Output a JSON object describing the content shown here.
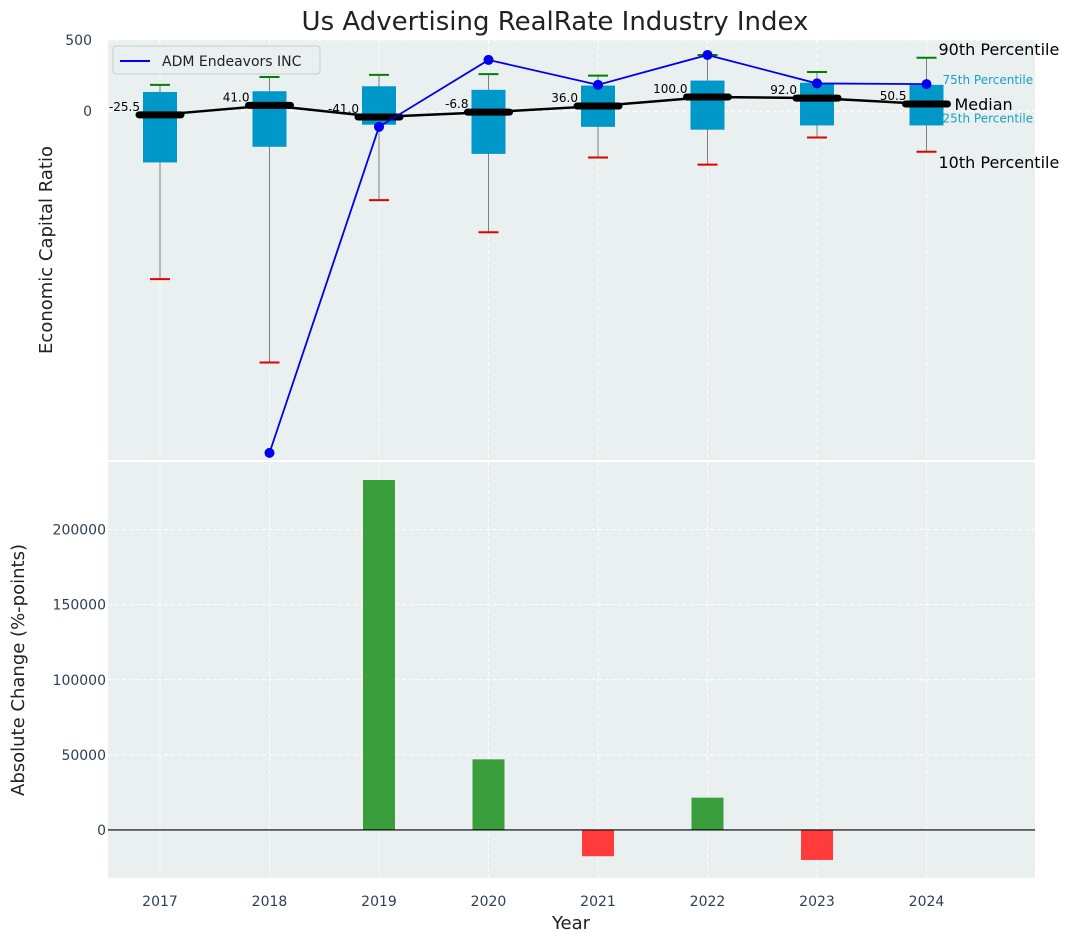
{
  "colors": {
    "panel_bg": "#eaeff0",
    "grid": "#ffffff",
    "box_fill": "#0097c9",
    "whisker": "#808080",
    "p90_cap": "#008000",
    "p10_cap": "#e00000",
    "median_line": "#000000",
    "company_line": "#0000ee",
    "bar_positive": "#3a9e3c",
    "bar_negative": "#ff3b3b",
    "pct_small_text": "#1aa0c8"
  },
  "chart_data": [
    {
      "type": "box",
      "title": "Us Advertising RealRate Industry Index",
      "xlabel": "",
      "ylabel": "Economic Capital Ratio",
      "categories": [
        "2017",
        "2018",
        "2019",
        "2020",
        "2021",
        "2022",
        "2023",
        "2024"
      ],
      "yticks": [
        "500",
        "0"
      ],
      "ylim": [
        -2450,
        500
      ],
      "median": [
        -25.5,
        41.0,
        -41.0,
        -6.8,
        36.0,
        100.0,
        92.0,
        50.5
      ],
      "median_labels": [
        "-25.5",
        "41.0",
        "-41.0",
        "-6.8",
        "36.0",
        "100.0",
        "92.0",
        "50.5"
      ],
      "p25": [
        -360,
        -250,
        -95,
        -300,
        -110,
        -130,
        -100,
        -100
      ],
      "p75": [
        135,
        140,
        175,
        150,
        180,
        215,
        200,
        185
      ],
      "p10": [
        -1180,
        -1765,
        -625,
        -850,
        -325,
        -375,
        -185,
        -285
      ],
      "p90": [
        185,
        240,
        255,
        260,
        250,
        395,
        275,
        375
      ],
      "series": [
        {
          "name": "ADM Endeavors INC",
          "values": [
            null,
            -2400,
            -110,
            360,
            185,
            395,
            195,
            190
          ]
        }
      ],
      "legend": "upper-left",
      "annotations": {
        "p90": "90th Percentile",
        "p75": "75th Percentile",
        "median": "Median",
        "p25": "25th Percentile",
        "p10": "10th Percentile"
      }
    },
    {
      "type": "bar",
      "title": "",
      "xlabel": "Year",
      "ylabel": "Absolute Change (%-points)",
      "categories": [
        "2017",
        "2018",
        "2019",
        "2020",
        "2021",
        "2022",
        "2023",
        "2024"
      ],
      "values": [
        0,
        0,
        233000,
        47000,
        -17500,
        21500,
        -20000,
        0
      ],
      "yticks": [
        "200000",
        "150000",
        "100000",
        "50000",
        "0"
      ],
      "ylim": [
        -32000,
        245000
      ]
    }
  ]
}
